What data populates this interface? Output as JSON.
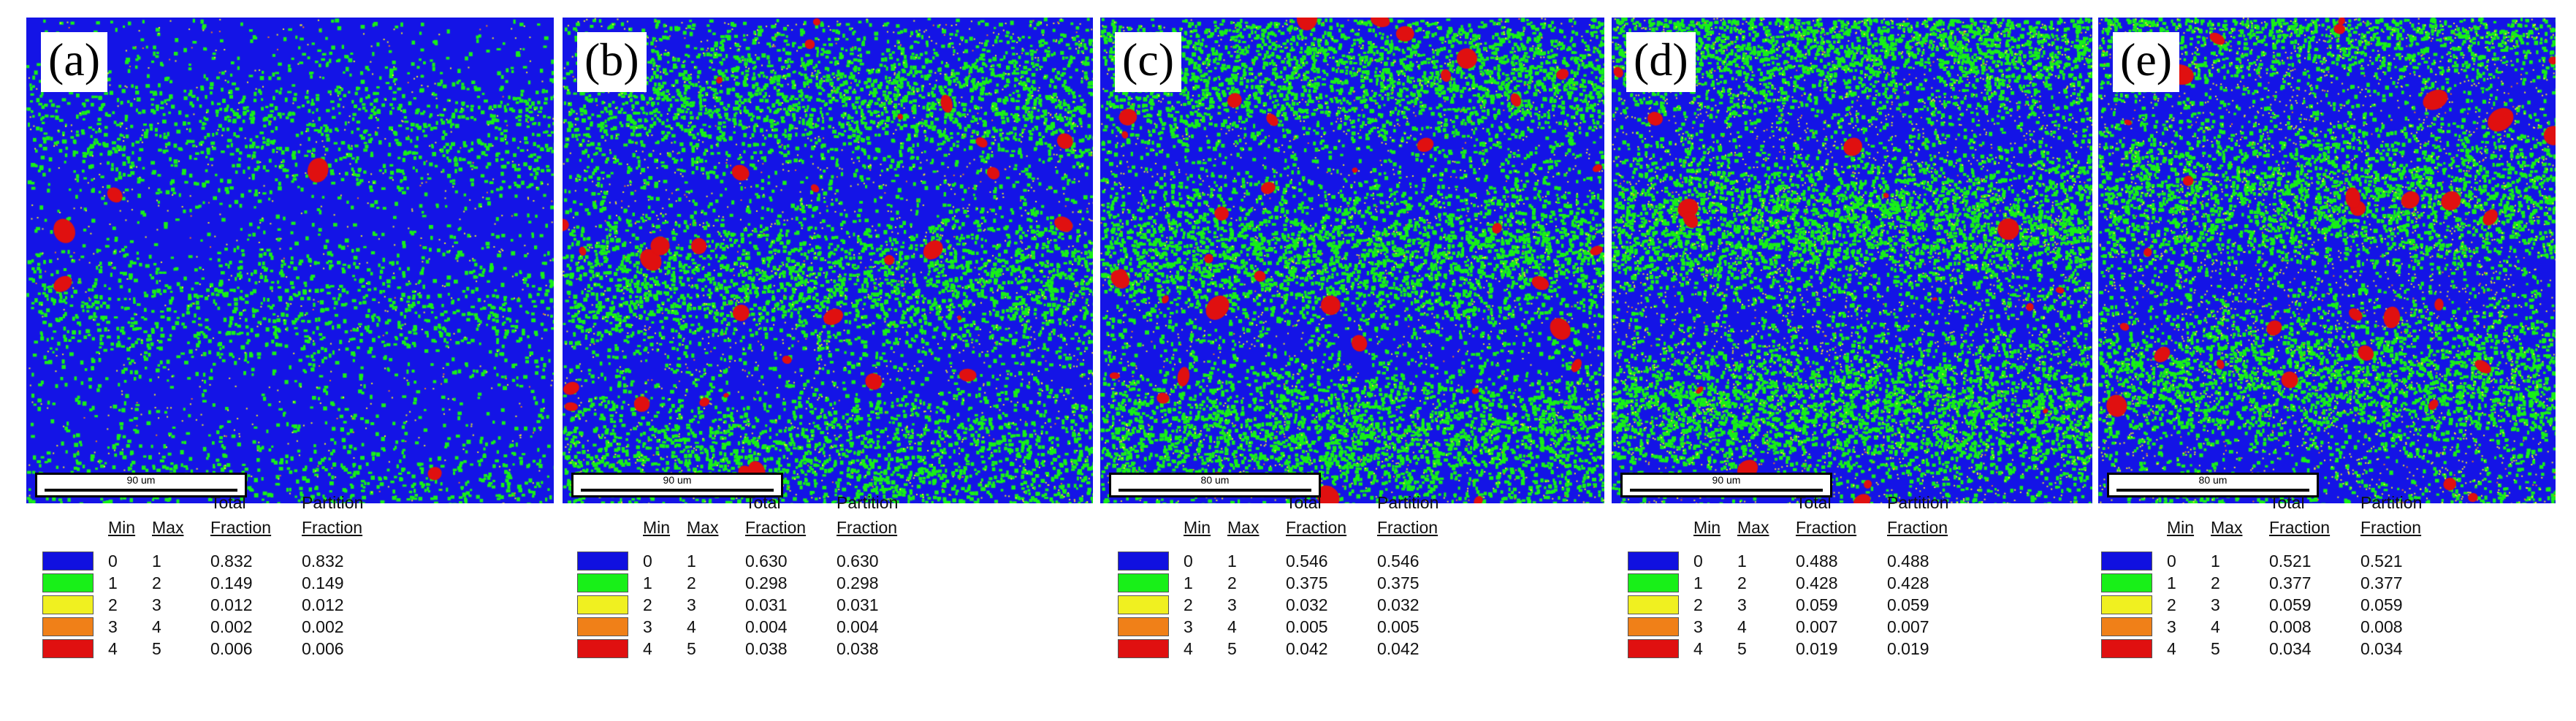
{
  "legend_headers": {
    "min": "Min",
    "max": "Max",
    "total": "Total",
    "partition": "Partition",
    "fraction": "Fraction"
  },
  "colors": {
    "bins": [
      "#1010e0",
      "#18f018",
      "#f0f020",
      "#f08018",
      "#e01010"
    ],
    "background": "#1414e6"
  },
  "panels": [
    {
      "label": "(a)",
      "scale_text": "90 um",
      "rows": [
        {
          "min": "0",
          "max": "1",
          "total": "0.832",
          "partition": "0.832"
        },
        {
          "min": "1",
          "max": "2",
          "total": "0.149",
          "partition": "0.149"
        },
        {
          "min": "2",
          "max": "3",
          "total": "0.012",
          "partition": "0.012"
        },
        {
          "min": "3",
          "max": "4",
          "total": "0.002",
          "partition": "0.002"
        },
        {
          "min": "4",
          "max": "5",
          "total": "0.006",
          "partition": "0.006"
        }
      ]
    },
    {
      "label": "(b)",
      "scale_text": "90 um",
      "rows": [
        {
          "min": "0",
          "max": "1",
          "total": "0.630",
          "partition": "0.630"
        },
        {
          "min": "1",
          "max": "2",
          "total": "0.298",
          "partition": "0.298"
        },
        {
          "min": "2",
          "max": "3",
          "total": "0.031",
          "partition": "0.031"
        },
        {
          "min": "3",
          "max": "4",
          "total": "0.004",
          "partition": "0.004"
        },
        {
          "min": "4",
          "max": "5",
          "total": "0.038",
          "partition": "0.038"
        }
      ]
    },
    {
      "label": "(c)",
      "scale_text": "80 um",
      "rows": [
        {
          "min": "0",
          "max": "1",
          "total": "0.546",
          "partition": "0.546"
        },
        {
          "min": "1",
          "max": "2",
          "total": "0.375",
          "partition": "0.375"
        },
        {
          "min": "2",
          "max": "3",
          "total": "0.032",
          "partition": "0.032"
        },
        {
          "min": "3",
          "max": "4",
          "total": "0.005",
          "partition": "0.005"
        },
        {
          "min": "4",
          "max": "5",
          "total": "0.042",
          "partition": "0.042"
        }
      ]
    },
    {
      "label": "(d)",
      "scale_text": "90 um",
      "rows": [
        {
          "min": "0",
          "max": "1",
          "total": "0.488",
          "partition": "0.488"
        },
        {
          "min": "1",
          "max": "2",
          "total": "0.428",
          "partition": "0.428"
        },
        {
          "min": "2",
          "max": "3",
          "total": "0.059",
          "partition": "0.059"
        },
        {
          "min": "3",
          "max": "4",
          "total": "0.007",
          "partition": "0.007"
        },
        {
          "min": "4",
          "max": "5",
          "total": "0.019",
          "partition": "0.019"
        }
      ]
    },
    {
      "label": "(e)",
      "scale_text": "80 um",
      "rows": [
        {
          "min": "0",
          "max": "1",
          "total": "0.521",
          "partition": "0.521"
        },
        {
          "min": "1",
          "max": "2",
          "total": "0.377",
          "partition": "0.377"
        },
        {
          "min": "2",
          "max": "3",
          "total": "0.059",
          "partition": "0.059"
        },
        {
          "min": "3",
          "max": "4",
          "total": "0.008",
          "partition": "0.008"
        },
        {
          "min": "4",
          "max": "5",
          "total": "0.034",
          "partition": "0.034"
        }
      ]
    }
  ]
}
